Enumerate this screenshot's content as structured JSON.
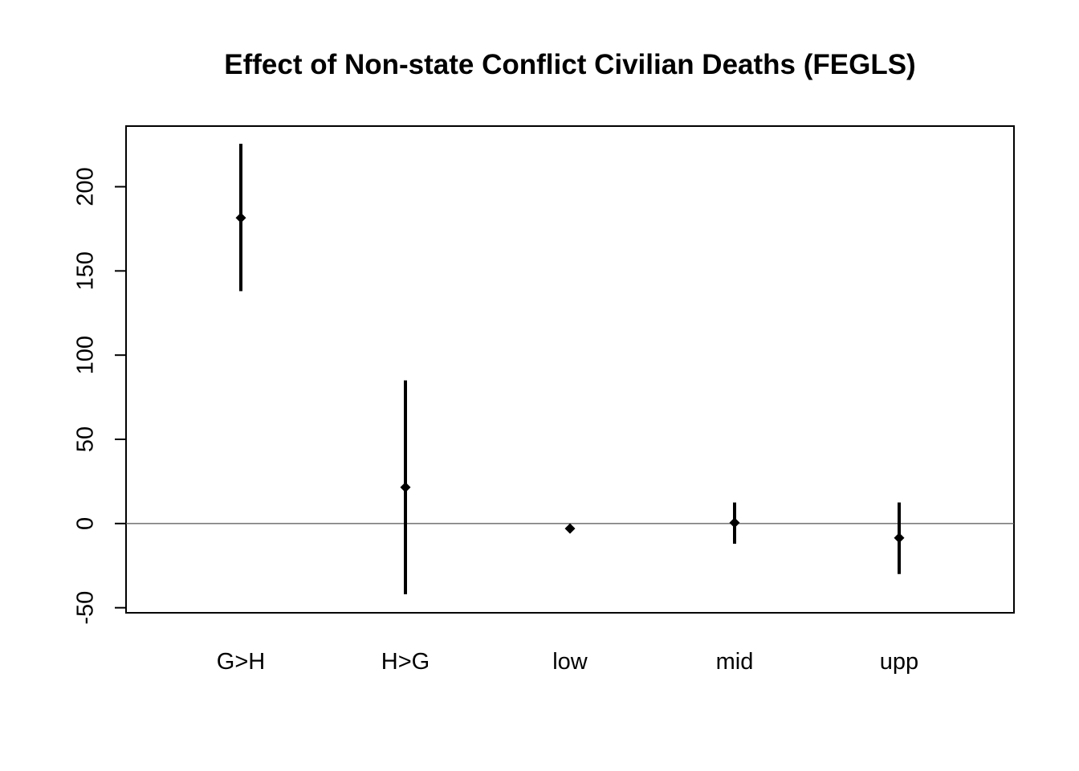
{
  "chart_data": {
    "type": "scatter",
    "title": "Effect of Non-state Conflict Civilian Deaths (FEGLS)",
    "xlabel": "",
    "ylabel": "",
    "categories": [
      "G>H",
      "H>G",
      "low",
      "mid",
      "upp"
    ],
    "estimates": [
      181.5,
      21.5,
      -3,
      0.5,
      -8.5
    ],
    "lower": [
      138,
      -42,
      -3,
      -12,
      -30
    ],
    "upper": [
      225.5,
      85,
      -3,
      12.5,
      12.5
    ],
    "ylim": [
      -53,
      236
    ],
    "yticks": [
      -50,
      0,
      50,
      100,
      150,
      200
    ],
    "ytick_labels": [
      "-50",
      "0",
      "50",
      "100",
      "150",
      "200"
    ],
    "reference_line": 0,
    "grid": false,
    "legend": "none",
    "colors": {
      "marks": "#000000",
      "reference_line": "#555555",
      "background": "#ffffff"
    }
  }
}
